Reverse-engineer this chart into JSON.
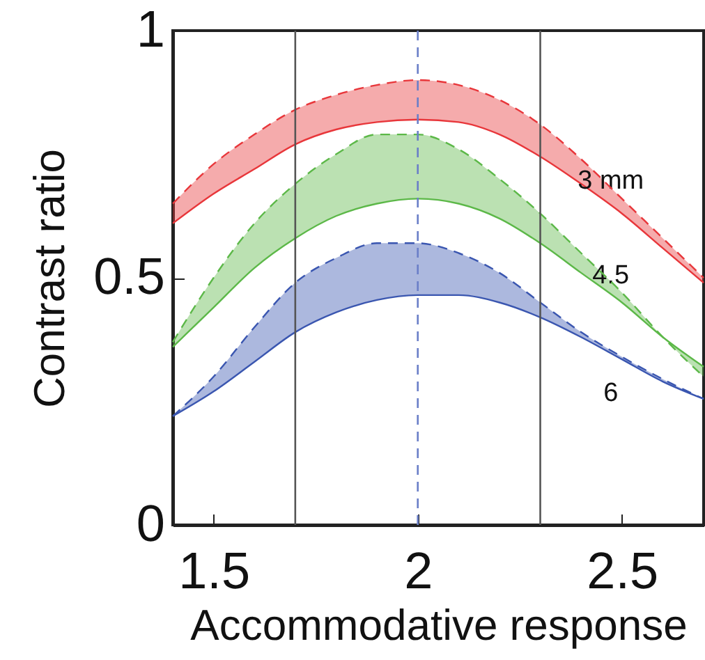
{
  "chart_data": {
    "type": "line",
    "xlabel": "Accommodative response",
    "ylabel": "Contrast ratio",
    "x": [
      1.4,
      1.5,
      1.6,
      1.7,
      1.8,
      1.9,
      2.0,
      2.1,
      2.2,
      2.3,
      2.4,
      2.5,
      2.6,
      2.7
    ],
    "series": [
      {
        "name": "3 mm",
        "color": "#e8363a",
        "values": [
          0.61,
          0.67,
          0.72,
          0.77,
          0.8,
          0.815,
          0.82,
          0.815,
          0.79,
          0.745,
          0.69,
          0.63,
          0.56,
          0.49
        ],
        "lower": [
          0.61,
          0.67,
          0.72,
          0.77,
          0.8,
          0.815,
          0.82,
          0.815,
          0.79,
          0.745,
          0.69,
          0.63,
          0.56,
          0.49
        ],
        "upper": [
          0.65,
          0.73,
          0.79,
          0.84,
          0.87,
          0.89,
          0.9,
          0.89,
          0.86,
          0.81,
          0.74,
          0.66,
          0.58,
          0.5
        ]
      },
      {
        "color": "#e8363a",
        "line_style": "dashed",
        "values": [
          0.65,
          0.73,
          0.79,
          0.84,
          0.87,
          0.89,
          0.9,
          0.89,
          0.86,
          0.81,
          0.74,
          0.66,
          0.58,
          0.5
        ]
      },
      {
        "name": "4.5",
        "color": "#5cb848",
        "values": [
          0.36,
          0.44,
          0.52,
          0.58,
          0.625,
          0.65,
          0.66,
          0.65,
          0.62,
          0.57,
          0.51,
          0.45,
          0.38,
          0.32
        ],
        "lower": [
          0.36,
          0.44,
          0.52,
          0.58,
          0.625,
          0.65,
          0.66,
          0.65,
          0.62,
          0.57,
          0.51,
          0.45,
          0.38,
          0.32
        ],
        "upper": [
          0.37,
          0.5,
          0.61,
          0.69,
          0.75,
          0.79,
          0.79,
          0.76,
          0.7,
          0.63,
          0.55,
          0.47,
          0.38,
          0.3
        ]
      },
      {
        "color": "#5cb848",
        "line_style": "dashed",
        "values": [
          0.37,
          0.5,
          0.61,
          0.69,
          0.75,
          0.79,
          0.79,
          0.76,
          0.7,
          0.63,
          0.55,
          0.47,
          0.38,
          0.3
        ]
      },
      {
        "name": "6",
        "color": "#3a56b0",
        "values": [
          0.22,
          0.27,
          0.33,
          0.39,
          0.43,
          0.455,
          0.465,
          0.465,
          0.45,
          0.42,
          0.38,
          0.335,
          0.29,
          0.255
        ],
        "lower": [
          0.22,
          0.27,
          0.33,
          0.39,
          0.43,
          0.455,
          0.465,
          0.465,
          0.45,
          0.42,
          0.38,
          0.335,
          0.29,
          0.255
        ],
        "upper": [
          0.22,
          0.3,
          0.4,
          0.49,
          0.54,
          0.57,
          0.57,
          0.55,
          0.51,
          0.45,
          0.39,
          0.34,
          0.295,
          0.255
        ]
      },
      {
        "color": "#3a56b0",
        "line_style": "dashed",
        "values": [
          0.22,
          0.3,
          0.4,
          0.49,
          0.54,
          0.57,
          0.57,
          0.55,
          0.51,
          0.45,
          0.39,
          0.34,
          0.295,
          0.255
        ]
      }
    ],
    "xlim": [
      1.4,
      2.7
    ],
    "xticks": [
      1.5,
      2,
      2.5
    ],
    "ylim": [
      0,
      1
    ],
    "yticks": [
      0,
      0.5,
      1
    ],
    "ref_lines": [
      {
        "axis": "x",
        "value": 1.7,
        "color": "#555555",
        "line_style": "solid"
      },
      {
        "axis": "x",
        "value": 2.0,
        "color": "#6a7fc8",
        "line_style": "dashed"
      },
      {
        "axis": "x",
        "value": 2.3,
        "color": "#555555",
        "line_style": "solid"
      }
    ],
    "grid": false,
    "legend": false,
    "marker": "none",
    "line_style": "solid"
  }
}
